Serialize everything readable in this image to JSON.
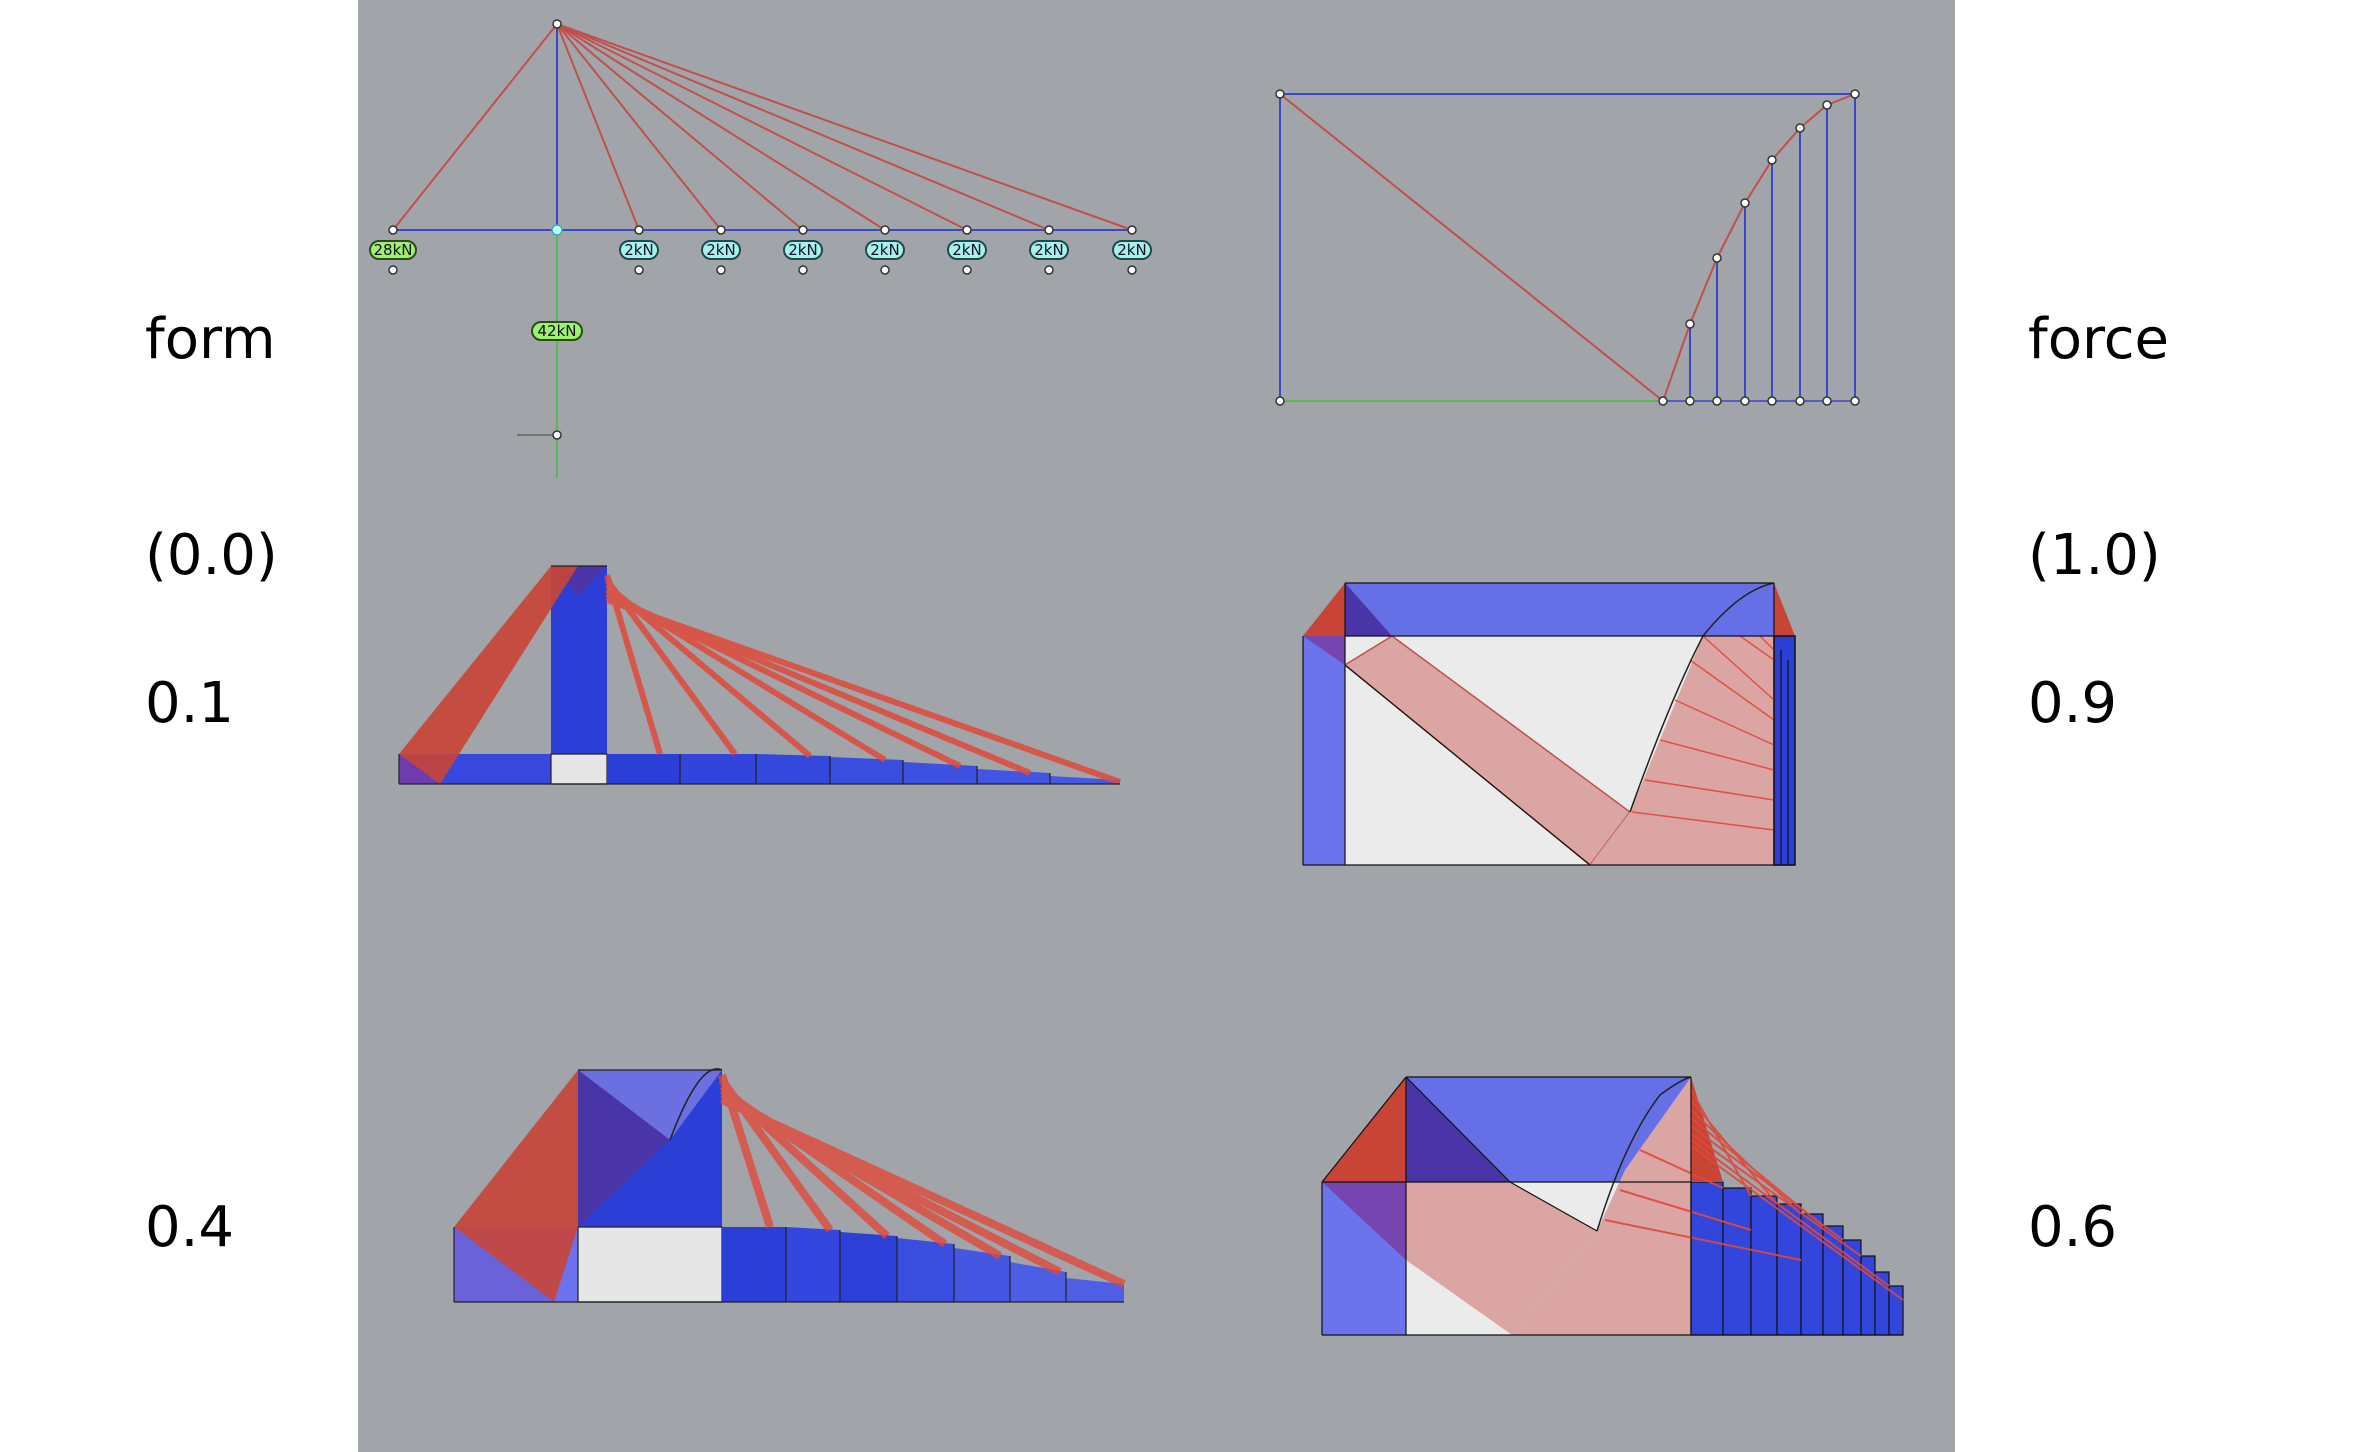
{
  "labels": {
    "form": "form",
    "form_value": "(0.0)",
    "force": "force",
    "force_value": "(1.0)",
    "left_mid": "0.1",
    "left_bottom": "0.4",
    "right_mid": "0.9",
    "right_bottom": "0.6"
  },
  "loads": {
    "reaction_left": "28kN",
    "reaction_support": "42kN",
    "point_loads": [
      "2kN",
      "2kN",
      "2kN",
      "2kN",
      "2kN",
      "2kN",
      "2kN"
    ]
  },
  "colors": {
    "canvas": "#a1a4a9",
    "compression": "#2638d8",
    "tension": "#d44a3c",
    "panel": "#e9e9e9"
  }
}
